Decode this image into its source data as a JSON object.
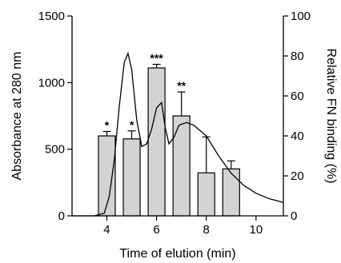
{
  "chart_data": {
    "type": "bar",
    "xlabel": "Time of elution (min)",
    "ylabel_left": "Absorbance at 280 nm",
    "ylabel_right": "Relative FN binding (%)",
    "xlim": [
      2.6,
      11.1
    ],
    "xticks": [
      4,
      6,
      8,
      10
    ],
    "ylim_left": [
      0,
      1500
    ],
    "yticks_left": [
      0,
      500,
      1000,
      1500
    ],
    "ylim_right": [
      0,
      100
    ],
    "yticks_right": [
      0,
      20,
      40,
      60,
      80,
      100
    ],
    "bars": {
      "name": "Relative FN binding",
      "axis": "right",
      "x": [
        4,
        5,
        6,
        7,
        8,
        9
      ],
      "values": [
        40,
        38.5,
        74,
        50,
        21.5,
        23.5
      ],
      "errors": [
        2.2,
        4,
        1.8,
        12,
        18,
        4
      ],
      "significance": [
        "*",
        "*",
        "***",
        "**",
        "",
        ""
      ]
    },
    "line": {
      "name": "Absorbance at 280 nm",
      "axis": "left",
      "x": [
        2.6,
        3.5,
        3.9,
        4.1,
        4.3,
        4.5,
        4.7,
        4.85,
        5.0,
        5.2,
        5.4,
        5.6,
        5.8,
        6.0,
        6.2,
        6.35,
        6.5,
        6.7,
        6.9,
        7.2,
        7.5,
        8.0,
        8.5,
        9.0,
        9.5,
        10.0,
        10.5,
        11.1
      ],
      "y": [
        0,
        0,
        20,
        150,
        420,
        820,
        1150,
        1220,
        1100,
        720,
        520,
        540,
        650,
        810,
        850,
        660,
        540,
        590,
        680,
        700,
        680,
        600,
        450,
        320,
        230,
        170,
        130,
        100
      ]
    },
    "bar_color": "#d3d3d3",
    "line_color": "#000000"
  }
}
